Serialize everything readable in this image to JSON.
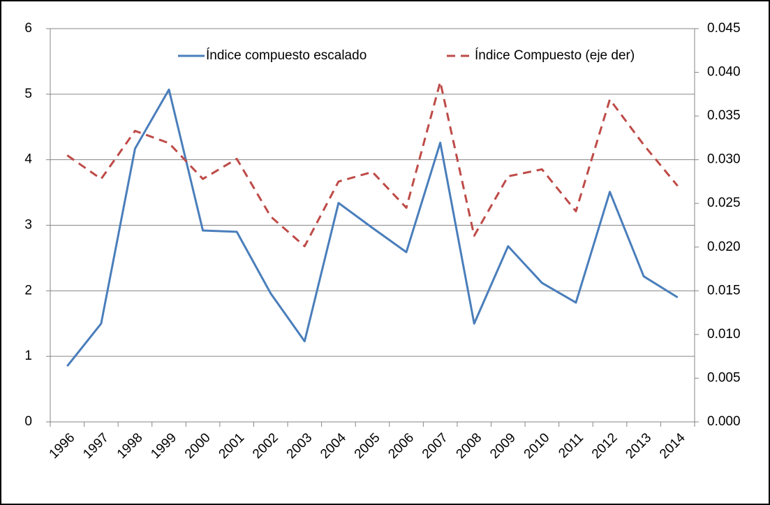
{
  "chart_data": {
    "type": "line",
    "categories": [
      "1996",
      "1997",
      "1998",
      "1999",
      "2000",
      "2001",
      "2002",
      "2003",
      "2004",
      "2005",
      "2006",
      "2007",
      "2008",
      "2009",
      "2010",
      "2011",
      "2012",
      "2013",
      "2014"
    ],
    "series": [
      {
        "name": "Índice compuesto escalado",
        "color": "#4a7ebb",
        "dash": "solid",
        "values": [
          0.85,
          1.5,
          4.17,
          5.07,
          2.92,
          2.9,
          1.96,
          1.23,
          3.34,
          2.96,
          2.59,
          4.26,
          1.5,
          2.68,
          2.12,
          1.82,
          3.51,
          2.22,
          1.9
        ]
      },
      {
        "name": "Índice Compuesto (eje der)",
        "color": "#be4b48",
        "dash": "dashed",
        "axis": "y2",
        "values": [
          0.0305,
          0.0278,
          0.0333,
          0.0319,
          0.0278,
          0.0301,
          0.0235,
          0.0201,
          0.0275,
          0.0286,
          0.0245,
          0.0389,
          0.0213,
          0.0281,
          0.0289,
          0.0241,
          0.0369,
          0.0317,
          0.027
        ]
      }
    ],
    "ylim": [
      0,
      6
    ],
    "yticks": [
      0,
      1,
      2,
      3,
      4,
      5,
      6
    ],
    "y2lim": [
      0,
      0.045
    ],
    "y2ticks": [
      {
        "value": 0,
        "label": "0.000"
      },
      {
        "value": 0.005,
        "label": "0.005"
      },
      {
        "value": 0.01,
        "label": "0.010"
      },
      {
        "value": 0.015,
        "label": "0.015"
      },
      {
        "value": 0.02,
        "label": "0.020"
      },
      {
        "value": 0.025,
        "label": "0.025"
      },
      {
        "value": 0.03,
        "label": "0.030"
      },
      {
        "value": 0.035,
        "label": "0.035"
      },
      {
        "value": 0.04,
        "label": "0.040"
      },
      {
        "value": 0.045,
        "label": "0.045"
      }
    ],
    "grid": true,
    "legend": "top"
  }
}
